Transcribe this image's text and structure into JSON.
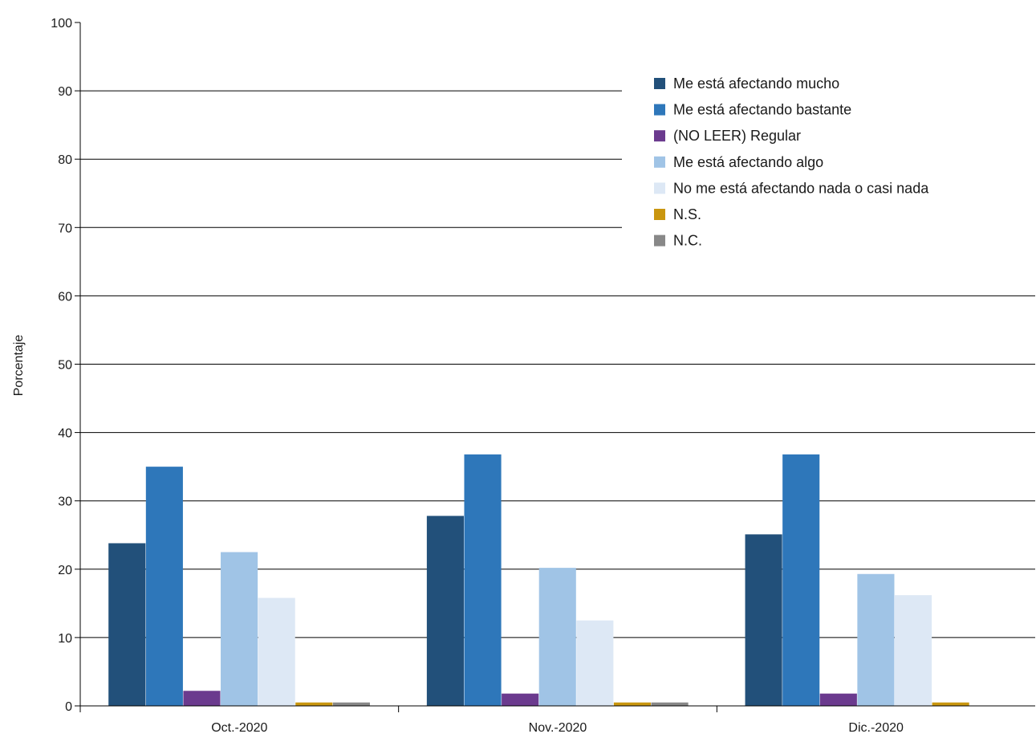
{
  "chart_data": {
    "type": "bar",
    "ylabel": "Porcentaje",
    "xlabel": "",
    "ylim": [
      0,
      100
    ],
    "yticks": [
      0,
      10,
      20,
      30,
      40,
      50,
      60,
      70,
      80,
      90,
      100
    ],
    "grid": true,
    "legend_position": "top-right",
    "categories": [
      "Oct.-2020",
      "Nov.-2020",
      "Dic.-2020"
    ],
    "series": [
      {
        "name": "Me está afectando mucho",
        "color": "#22507a",
        "values": [
          23.8,
          27.8,
          25.1
        ]
      },
      {
        "name": "Me está afectando bastante",
        "color": "#2e77ba",
        "values": [
          35.0,
          36.8,
          36.8
        ]
      },
      {
        "name": "(NO LEER) Regular",
        "color": "#6b3a8e",
        "values": [
          2.2,
          1.8,
          1.8
        ]
      },
      {
        "name": "Me está afectando algo",
        "color": "#a0c4e6",
        "values": [
          22.5,
          20.2,
          19.3
        ]
      },
      {
        "name": "No me está afectando nada o casi nada",
        "color": "#dde8f5",
        "values": [
          15.8,
          12.5,
          16.2
        ]
      },
      {
        "name": "N.S.",
        "color": "#c9960f",
        "values": [
          0.5,
          0.5,
          0.5
        ]
      },
      {
        "name": "N.C.",
        "color": "#888888",
        "values": [
          0.5,
          0.5,
          0.0
        ]
      }
    ]
  }
}
